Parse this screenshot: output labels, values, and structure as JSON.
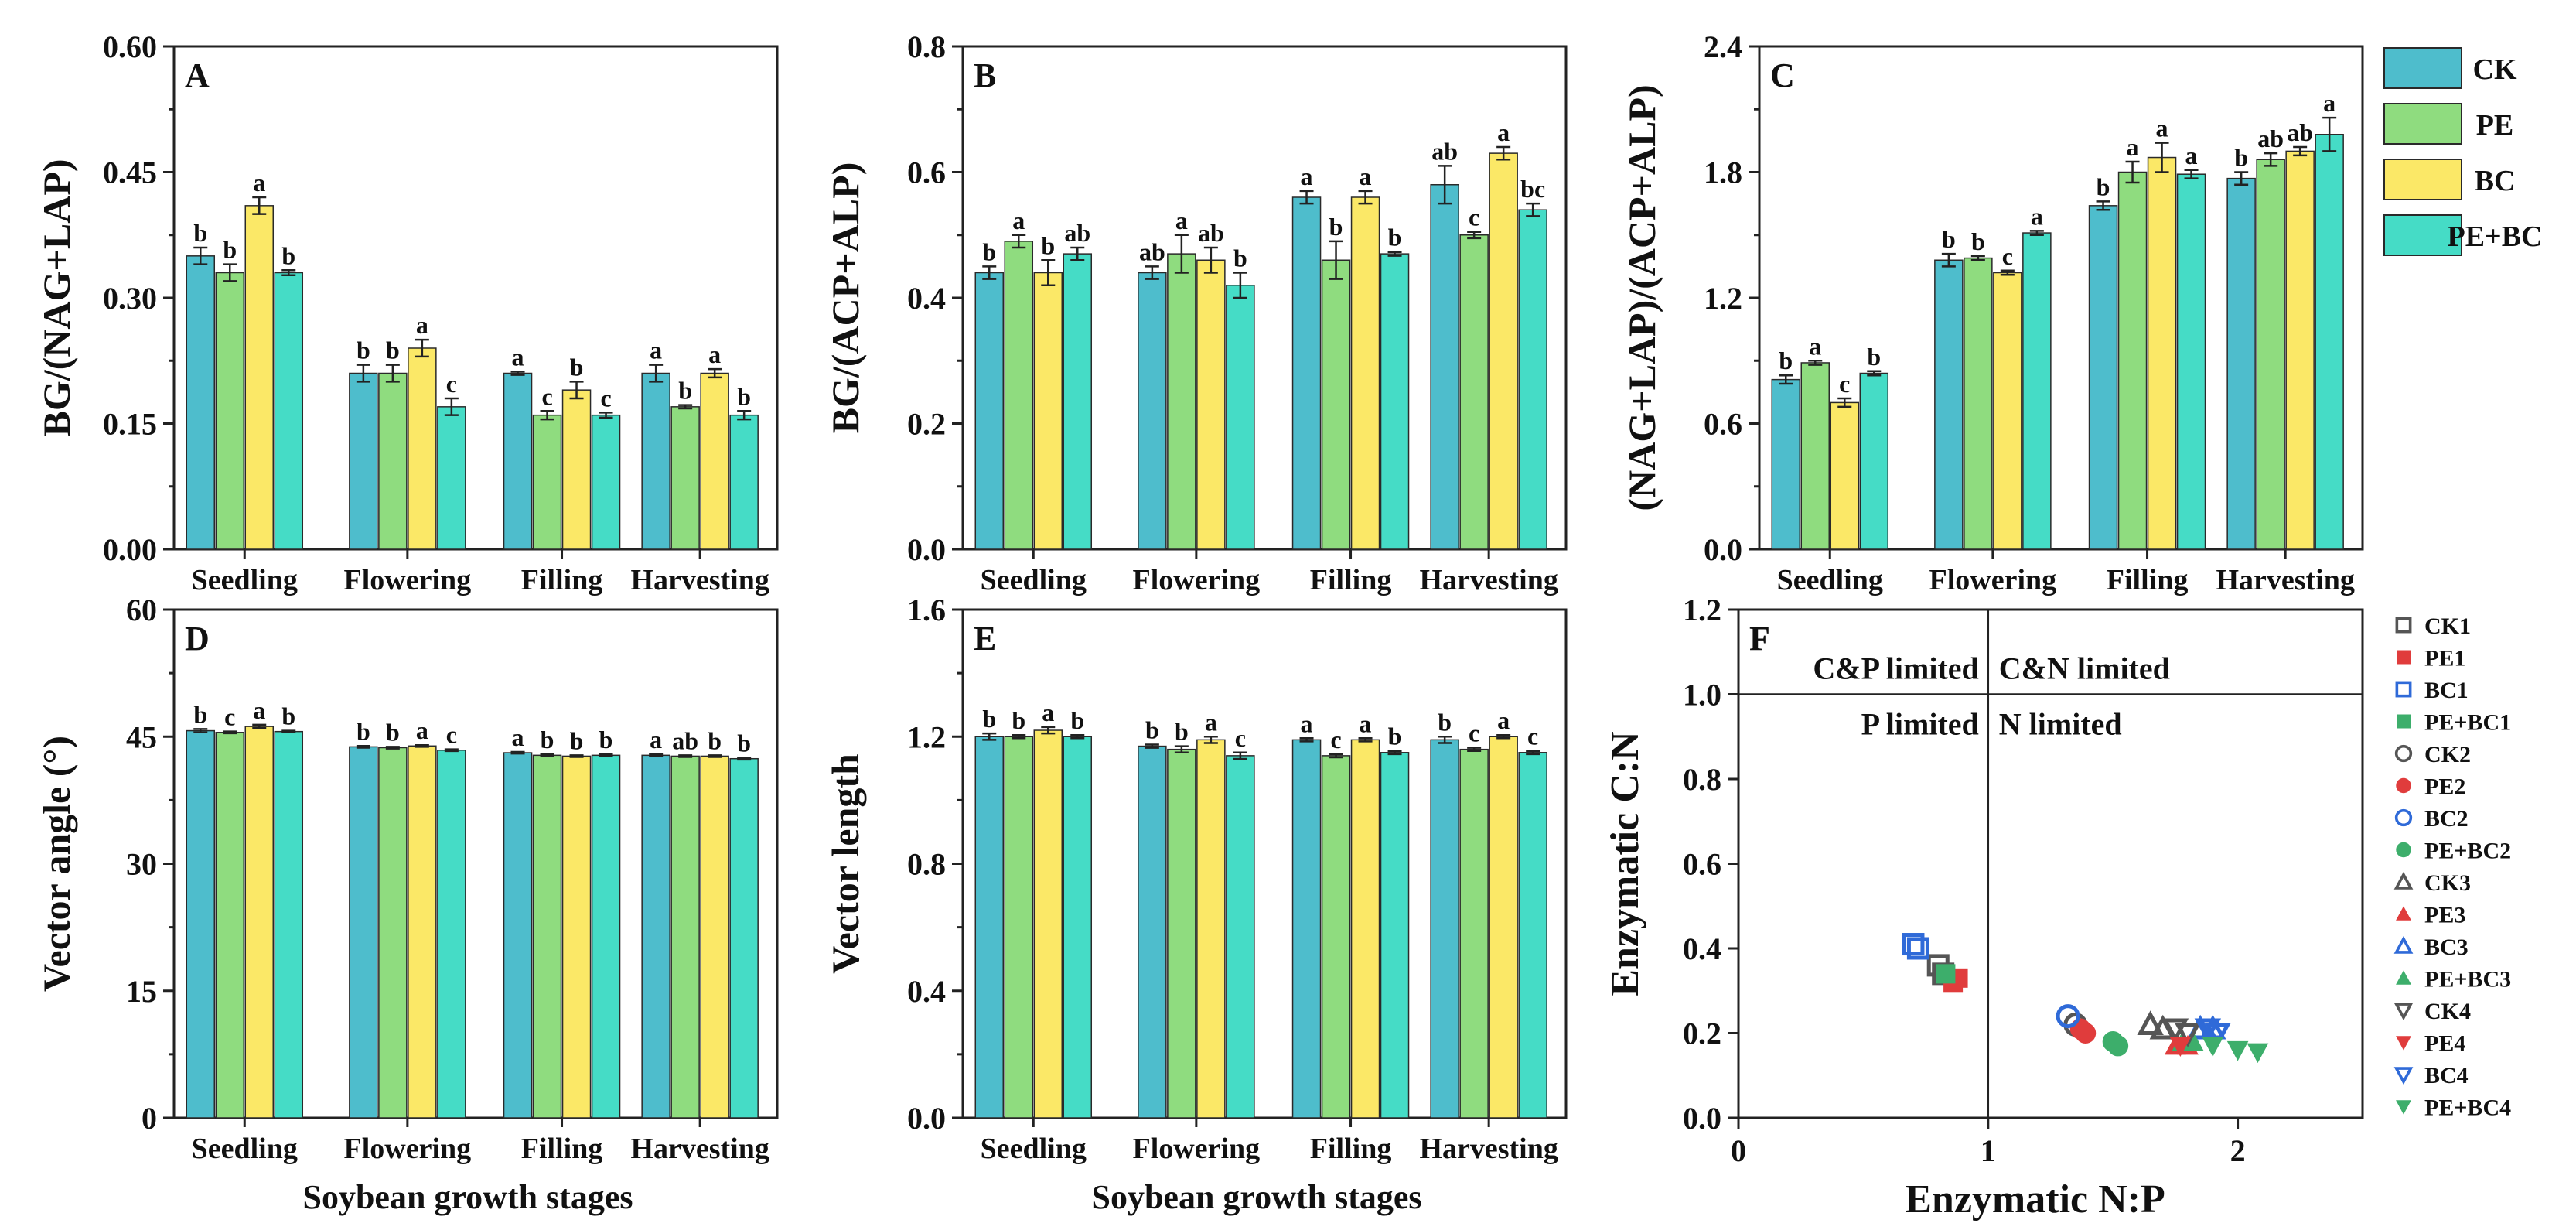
{
  "colors": {
    "CK": "#4ebdcc",
    "PE": "#8fdc7f",
    "BC": "#fbe867",
    "PE+BC": "#45dcc6",
    "open_blue": "#2f6ad8",
    "red": "#e03c3c",
    "green": "#3dae6b",
    "gray": "#555555"
  },
  "legend": [
    "CK",
    "PE",
    "BC",
    "PE+BC"
  ],
  "xlabel": "Soybean growth stages",
  "chart_data": [
    {
      "id": "A",
      "type": "bar",
      "panel_label": "A",
      "ylabel": "BG/(NAG+LAP)",
      "categories": [
        "Seedling",
        "Flowering",
        "Filling",
        "Harvesting"
      ],
      "ylim": [
        0,
        0.6
      ],
      "yticks": [
        "0.00",
        "0.15",
        "0.30",
        "0.45",
        "0.60"
      ],
      "series": [
        {
          "name": "CK",
          "values": [
            0.35,
            0.21,
            0.21,
            0.21
          ],
          "err": [
            0.01,
            0.01,
            0.002,
            0.01
          ],
          "letters": [
            "b",
            "b",
            "a",
            "a"
          ]
        },
        {
          "name": "PE",
          "values": [
            0.33,
            0.21,
            0.16,
            0.17
          ],
          "err": [
            0.01,
            0.01,
            0.005,
            0.002
          ],
          "letters": [
            "b",
            "b",
            "c",
            "b"
          ]
        },
        {
          "name": "BC",
          "values": [
            0.41,
            0.24,
            0.19,
            0.21
          ],
          "err": [
            0.01,
            0.01,
            0.01,
            0.005
          ],
          "letters": [
            "a",
            "a",
            "b",
            "a"
          ]
        },
        {
          "name": "PE+BC",
          "values": [
            0.33,
            0.17,
            0.16,
            0.16
          ],
          "err": [
            0.003,
            0.01,
            0.003,
            0.005
          ],
          "letters": [
            "b",
            "c",
            "c",
            "b"
          ]
        }
      ]
    },
    {
      "id": "B",
      "type": "bar",
      "panel_label": "B",
      "ylabel": "BG/(ACP+ALP)",
      "categories": [
        "Seedling",
        "Flowering",
        "Filling",
        "Harvesting"
      ],
      "ylim": [
        0,
        0.8
      ],
      "yticks": [
        "0.0",
        "0.2",
        "0.4",
        "0.6",
        "0.8"
      ],
      "series": [
        {
          "name": "CK",
          "values": [
            0.44,
            0.44,
            0.56,
            0.58
          ],
          "err": [
            0.01,
            0.01,
            0.01,
            0.03
          ],
          "letters": [
            "b",
            "ab",
            "a",
            "ab"
          ]
        },
        {
          "name": "PE",
          "values": [
            0.49,
            0.47,
            0.46,
            0.5
          ],
          "err": [
            0.01,
            0.03,
            0.03,
            0.005
          ],
          "letters": [
            "a",
            "a",
            "b",
            "c"
          ]
        },
        {
          "name": "BC",
          "values": [
            0.44,
            0.46,
            0.56,
            0.63
          ],
          "err": [
            0.02,
            0.02,
            0.01,
            0.01
          ],
          "letters": [
            "b",
            "ab",
            "a",
            "a"
          ]
        },
        {
          "name": "PE+BC",
          "values": [
            0.47,
            0.42,
            0.47,
            0.54
          ],
          "err": [
            0.01,
            0.02,
            0.003,
            0.01
          ],
          "letters": [
            "ab",
            "b",
            "b",
            "bc"
          ]
        }
      ]
    },
    {
      "id": "C",
      "type": "bar",
      "panel_label": "C",
      "ylabel": "(NAG+LAP)/(ACP+ALP)",
      "categories": [
        "Seedling",
        "Flowering",
        "Filling",
        "Harvesting"
      ],
      "ylim": [
        0,
        2.4
      ],
      "yticks": [
        "0.0",
        "0.6",
        "1.2",
        "1.8",
        "2.4"
      ],
      "series": [
        {
          "name": "CK",
          "values": [
            0.81,
            1.38,
            1.64,
            1.77
          ],
          "err": [
            0.02,
            0.03,
            0.02,
            0.03
          ],
          "letters": [
            "b",
            "b",
            "b",
            "b"
          ]
        },
        {
          "name": "PE",
          "values": [
            0.89,
            1.39,
            1.8,
            1.86
          ],
          "err": [
            0.01,
            0.01,
            0.05,
            0.03
          ],
          "letters": [
            "a",
            "b",
            "a",
            "ab"
          ]
        },
        {
          "name": "BC",
          "values": [
            0.7,
            1.32,
            1.87,
            1.9
          ],
          "err": [
            0.02,
            0.01,
            0.07,
            0.02
          ],
          "letters": [
            "c",
            "c",
            "a",
            "ab"
          ]
        },
        {
          "name": "PE+BC",
          "values": [
            0.84,
            1.51,
            1.79,
            1.98
          ],
          "err": [
            0.01,
            0.01,
            0.02,
            0.08
          ],
          "letters": [
            "b",
            "a",
            "a",
            "a"
          ]
        }
      ]
    },
    {
      "id": "D",
      "type": "bar",
      "panel_label": "D",
      "ylabel": "Vector angle (°)",
      "categories": [
        "Seedling",
        "Flowering",
        "Filling",
        "Harvesting"
      ],
      "ylim": [
        0,
        60
      ],
      "yticks": [
        "0",
        "15",
        "30",
        "45",
        "60"
      ],
      "series": [
        {
          "name": "CK",
          "values": [
            45.7,
            43.8,
            43.1,
            42.8
          ],
          "err": [
            0.2,
            0.1,
            0.1,
            0.1
          ],
          "letters": [
            "b",
            "b",
            "a",
            "a"
          ]
        },
        {
          "name": "PE",
          "values": [
            45.5,
            43.7,
            42.8,
            42.7
          ],
          "err": [
            0.1,
            0.1,
            0.1,
            0.1
          ],
          "letters": [
            "c",
            "b",
            "b",
            "ab"
          ]
        },
        {
          "name": "BC",
          "values": [
            46.2,
            43.9,
            42.7,
            42.7
          ],
          "err": [
            0.2,
            0.1,
            0.1,
            0.1
          ],
          "letters": [
            "a",
            "a",
            "b",
            "b"
          ]
        },
        {
          "name": "PE+BC",
          "values": [
            45.6,
            43.4,
            42.8,
            42.4
          ],
          "err": [
            0.1,
            0.1,
            0.1,
            0.1
          ],
          "letters": [
            "b",
            "c",
            "b",
            "b"
          ]
        }
      ]
    },
    {
      "id": "E",
      "type": "bar",
      "panel_label": "E",
      "ylabel": "Vector length",
      "categories": [
        "Seedling",
        "Flowering",
        "Filling",
        "Harvesting"
      ],
      "ylim": [
        0,
        1.6
      ],
      "yticks": [
        "0.0",
        "0.4",
        "0.8",
        "1.2",
        "1.6"
      ],
      "series": [
        {
          "name": "CK",
          "values": [
            1.2,
            1.17,
            1.19,
            1.19
          ],
          "err": [
            0.01,
            0.005,
            0.005,
            0.01
          ],
          "letters": [
            "b",
            "b",
            "a",
            "b"
          ]
        },
        {
          "name": "PE",
          "values": [
            1.2,
            1.16,
            1.14,
            1.16
          ],
          "err": [
            0.005,
            0.01,
            0.005,
            0.005
          ],
          "letters": [
            "b",
            "b",
            "c",
            "c"
          ]
        },
        {
          "name": "BC",
          "values": [
            1.22,
            1.19,
            1.19,
            1.2
          ],
          "err": [
            0.01,
            0.01,
            0.005,
            0.005
          ],
          "letters": [
            "a",
            "a",
            "a",
            "a"
          ]
        },
        {
          "name": "PE+BC",
          "values": [
            1.2,
            1.14,
            1.15,
            1.15
          ],
          "err": [
            0.005,
            0.01,
            0.005,
            0.005
          ],
          "letters": [
            "b",
            "c",
            "b",
            "c"
          ]
        }
      ]
    },
    {
      "id": "F",
      "type": "scatter",
      "panel_label": "F",
      "xlabel": "Enzymatic N:P",
      "ylabel": "Enzymatic C:N",
      "xlim": [
        0,
        2.5
      ],
      "ylim": [
        0,
        1.2
      ],
      "xticks": [
        "0",
        "1",
        "2"
      ],
      "yticks": [
        "0.0",
        "0.2",
        "0.4",
        "0.6",
        "0.8",
        "1.0",
        "1.2"
      ],
      "reference_lines": {
        "x": 1,
        "y": 1
      },
      "region_labels": [
        "C&P limited",
        "C&N limited",
        "P limited",
        "N limited"
      ],
      "series": [
        {
          "name": "CK1",
          "marker": "square-open",
          "color": "#555555",
          "points": [
            [
              0.8,
              0.36
            ],
            [
              0.82,
              0.34
            ]
          ]
        },
        {
          "name": "PE1",
          "marker": "square",
          "color": "#e03c3c",
          "points": [
            [
              0.88,
              0.33
            ],
            [
              0.86,
              0.32
            ]
          ]
        },
        {
          "name": "BC1",
          "marker": "square-open",
          "color": "#2f6ad8",
          "points": [
            [
              0.7,
              0.41
            ],
            [
              0.72,
              0.4
            ]
          ]
        },
        {
          "name": "PE+BC1",
          "marker": "square",
          "color": "#3dae6b",
          "points": [
            [
              0.83,
              0.34
            ]
          ]
        },
        {
          "name": "CK2",
          "marker": "circle-open",
          "color": "#555555",
          "points": [
            [
              1.35,
              0.22
            ]
          ]
        },
        {
          "name": "PE2",
          "marker": "circle",
          "color": "#e03c3c",
          "points": [
            [
              1.37,
              0.21
            ],
            [
              1.39,
              0.2
            ]
          ]
        },
        {
          "name": "BC2",
          "marker": "circle-open",
          "color": "#2f6ad8",
          "points": [
            [
              1.32,
              0.24
            ]
          ]
        },
        {
          "name": "PE+BC2",
          "marker": "circle",
          "color": "#3dae6b",
          "points": [
            [
              1.5,
              0.18
            ],
            [
              1.52,
              0.17
            ]
          ]
        },
        {
          "name": "CK3",
          "marker": "triangle-up-open",
          "color": "#555555",
          "points": [
            [
              1.65,
              0.22
            ],
            [
              1.7,
              0.21
            ]
          ]
        },
        {
          "name": "PE3",
          "marker": "triangle-up",
          "color": "#e03c3c",
          "points": [
            [
              1.75,
              0.17
            ],
            [
              1.8,
              0.17
            ]
          ]
        },
        {
          "name": "BC3",
          "marker": "triangle-up-open",
          "color": "#2f6ad8",
          "points": [
            [
              1.85,
              0.21
            ],
            [
              1.9,
              0.21
            ]
          ]
        },
        {
          "name": "PE+BC3",
          "marker": "triangle-up",
          "color": "#3dae6b",
          "points": [
            [
              1.78,
              0.18
            ],
            [
              1.82,
              0.18
            ]
          ]
        },
        {
          "name": "CK4",
          "marker": "triangle-down-open",
          "color": "#555555",
          "points": [
            [
              1.75,
              0.21
            ],
            [
              1.8,
              0.2
            ]
          ]
        },
        {
          "name": "PE4",
          "marker": "triangle-down",
          "color": "#e03c3c",
          "points": [
            [
              1.77,
              0.17
            ]
          ]
        },
        {
          "name": "BC4",
          "marker": "triangle-down-open",
          "color": "#2f6ad8",
          "points": [
            [
              1.88,
              0.21
            ],
            [
              1.92,
              0.2
            ]
          ]
        },
        {
          "name": "PE+BC4",
          "marker": "triangle-down",
          "color": "#3dae6b",
          "points": [
            [
              1.9,
              0.17
            ],
            [
              2.0,
              0.16
            ],
            [
              2.08,
              0.155
            ]
          ]
        }
      ]
    }
  ]
}
